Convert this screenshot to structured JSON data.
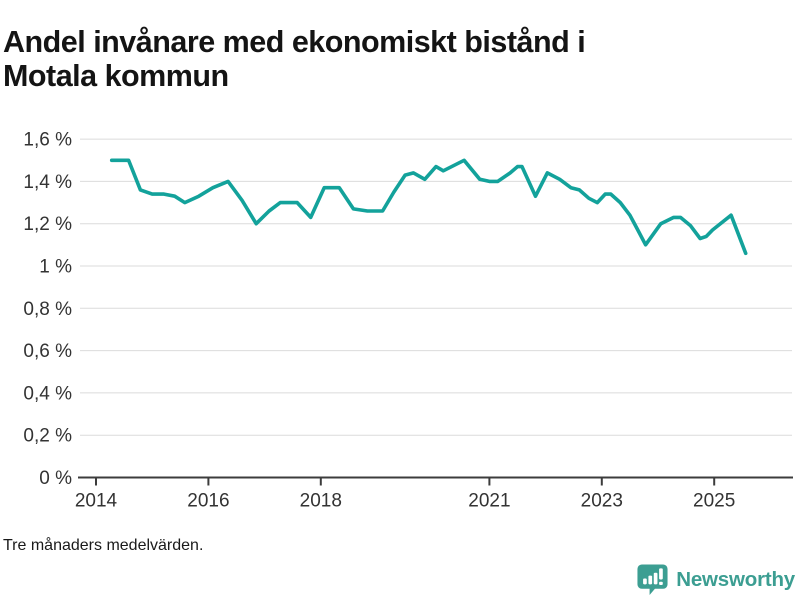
{
  "title_lines": [
    "Andel invånare med ekonomiskt bistånd i",
    "Motala kommun"
  ],
  "footnote": "Tre månaders medelvärden.",
  "brand": {
    "name": "Newsworthy",
    "icon": "bar-chart-speech-bubble",
    "color": "#3c9e92"
  },
  "colors": {
    "line": "#13a29b",
    "grid": "#dbdbdb",
    "axis": "#3c3c3c",
    "tick_label": "#333333",
    "title": "#141414",
    "footnote": "#1a1a1a",
    "background": "#ffffff"
  },
  "chart_data": {
    "type": "line",
    "title": "Andel invånare med ekonomiskt bistånd i Motala kommun",
    "footnote": "Tre månaders medelvärden.",
    "unit": "%",
    "decimal_separator": ",",
    "grid": true,
    "legend": "none",
    "xlim": [
      2013.7,
      2026.4
    ],
    "ylim": [
      0,
      1.69
    ],
    "x_ticks": [
      {
        "value": 2014,
        "label": "2014"
      },
      {
        "value": 2016,
        "label": "2016"
      },
      {
        "value": 2018,
        "label": "2018"
      },
      {
        "value": 2021,
        "label": "2021"
      },
      {
        "value": 2023,
        "label": "2023"
      },
      {
        "value": 2025,
        "label": "2025"
      }
    ],
    "y_ticks": [
      {
        "value": 0,
        "label": "0 %"
      },
      {
        "value": 0.2,
        "label": "0,2 %"
      },
      {
        "value": 0.4,
        "label": "0,4 %"
      },
      {
        "value": 0.6,
        "label": "0,6 %"
      },
      {
        "value": 0.8,
        "label": "0,8 %"
      },
      {
        "value": 1,
        "label": "1 %"
      },
      {
        "value": 1.2,
        "label": "1,2 %"
      },
      {
        "value": 1.4,
        "label": "1,4 %"
      },
      {
        "value": 1.6,
        "label": "1,6 %"
      }
    ],
    "series": [
      {
        "name": "Andel invånare med ekonomiskt bistånd i Motala kommun",
        "points": [
          [
            2014.28,
            1.5
          ],
          [
            2014.58,
            1.5
          ],
          [
            2014.79,
            1.36
          ],
          [
            2015.0,
            1.34
          ],
          [
            2015.21,
            1.34
          ],
          [
            2015.4,
            1.33
          ],
          [
            2015.58,
            1.3
          ],
          [
            2015.83,
            1.33
          ],
          [
            2016.08,
            1.37
          ],
          [
            2016.35,
            1.4
          ],
          [
            2016.6,
            1.31
          ],
          [
            2016.85,
            1.2
          ],
          [
            2017.08,
            1.26
          ],
          [
            2017.28,
            1.3
          ],
          [
            2017.58,
            1.3
          ],
          [
            2017.82,
            1.23
          ],
          [
            2018.06,
            1.37
          ],
          [
            2018.33,
            1.37
          ],
          [
            2018.58,
            1.27
          ],
          [
            2018.83,
            1.26
          ],
          [
            2019.1,
            1.26
          ],
          [
            2019.3,
            1.35
          ],
          [
            2019.5,
            1.43
          ],
          [
            2019.65,
            1.44
          ],
          [
            2019.85,
            1.41
          ],
          [
            2020.05,
            1.47
          ],
          [
            2020.18,
            1.45
          ],
          [
            2020.55,
            1.5
          ],
          [
            2020.83,
            1.41
          ],
          [
            2021.0,
            1.4
          ],
          [
            2021.15,
            1.4
          ],
          [
            2021.37,
            1.44
          ],
          [
            2021.5,
            1.47
          ],
          [
            2021.58,
            1.47
          ],
          [
            2021.82,
            1.33
          ],
          [
            2022.03,
            1.44
          ],
          [
            2022.25,
            1.41
          ],
          [
            2022.45,
            1.37
          ],
          [
            2022.6,
            1.36
          ],
          [
            2022.77,
            1.32
          ],
          [
            2022.92,
            1.3
          ],
          [
            2023.06,
            1.34
          ],
          [
            2023.16,
            1.34
          ],
          [
            2023.33,
            1.3
          ],
          [
            2023.5,
            1.24
          ],
          [
            2023.64,
            1.17
          ],
          [
            2023.78,
            1.1
          ],
          [
            2024.05,
            1.2
          ],
          [
            2024.28,
            1.23
          ],
          [
            2024.4,
            1.23
          ],
          [
            2024.58,
            1.19
          ],
          [
            2024.75,
            1.13
          ],
          [
            2024.86,
            1.14
          ],
          [
            2024.97,
            1.17
          ],
          [
            2025.3,
            1.24
          ],
          [
            2025.56,
            1.06
          ]
        ]
      }
    ]
  }
}
